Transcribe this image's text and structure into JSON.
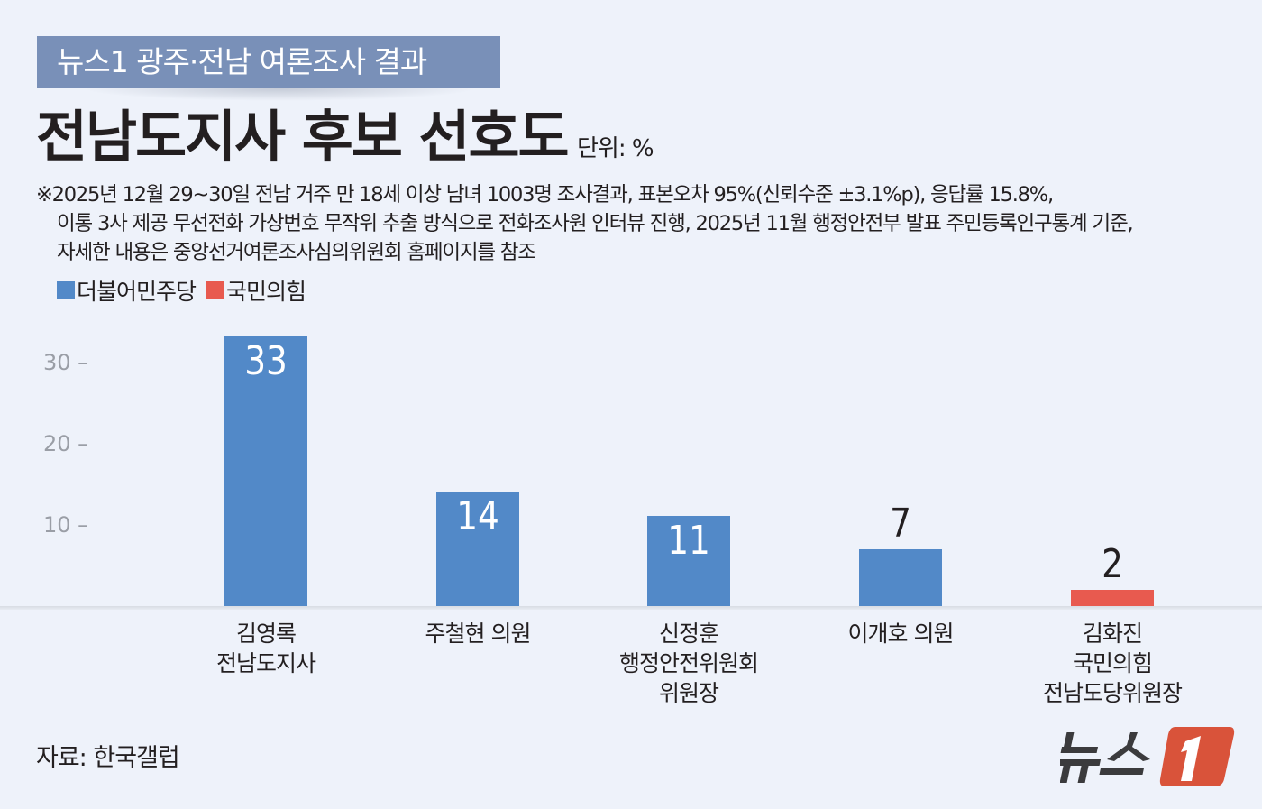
{
  "header": {
    "kicker": "뉴스1 광주·전남 여론조사 결과",
    "title": "전남도지사 후보 선호도",
    "unit": "단위: %"
  },
  "note": {
    "lines": [
      "※2025년 12월 29~30일 전남 거주 만 18세 이상 남녀 1003명 조사결과, 표본오차 95%(신뢰수준 ±3.1%p), 응답률  15.8%,",
      "이통 3사 제공 무선전화 가상번호 무작위 추출 방식으로 전화조사원 인터뷰 진행, 2025년 11월 행정안전부 발표 주민등록인구통계 기준,",
      "자세한 내용은 중앙선거여론조사심의위원회 홈페이지를 참조"
    ]
  },
  "legend": [
    {
      "label": "더불어민주당",
      "color": "#5289c8"
    },
    {
      "label": "국민의힘",
      "color": "#e85a4f"
    }
  ],
  "footer": {
    "source": "자료: 한국갤럽",
    "logo_text": "뉴스",
    "logo_badge": "1"
  },
  "chart_data": {
    "type": "bar",
    "title": "전남도지사 후보 선호도",
    "unit": "%",
    "categories": [
      "김영록\n전남도지사",
      "주철현 의원",
      "신정훈\n행정안전위원회\n위원장",
      "이개호 의원",
      "김화진\n국민의힘\n전남도당위원장"
    ],
    "values": [
      33,
      14,
      11,
      7,
      2
    ],
    "value_labels": [
      "33",
      "14",
      "11",
      "7",
      "2"
    ],
    "parties": [
      "더불어민주당",
      "더불어민주당",
      "더불어민주당",
      "더불어민주당",
      "국민의힘"
    ],
    "colors": [
      "#5289c8",
      "#5289c8",
      "#5289c8",
      "#5289c8",
      "#e85a4f"
    ],
    "yticks": [
      10,
      20,
      30
    ],
    "ytick_labels": [
      "10 –",
      "20 –",
      "30 –"
    ],
    "ylim": [
      0,
      35
    ],
    "grid": false,
    "legend_position": "top-left",
    "xlabel": "",
    "ylabel": ""
  }
}
